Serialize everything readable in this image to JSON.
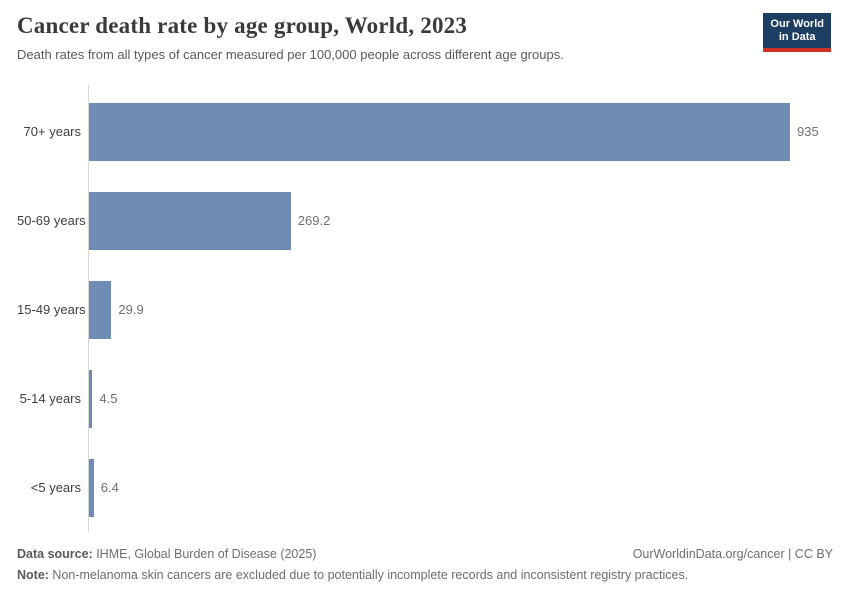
{
  "header": {
    "title": "Cancer death rate by age group, World, 2023",
    "subtitle": "Death rates from all types of cancer measured per 100,000 people across different age groups.",
    "logo": {
      "line1": "Our World",
      "line2": "in Data"
    }
  },
  "chart_data": {
    "type": "bar",
    "orientation": "horizontal",
    "title": "Cancer death rate by age group, World, 2023",
    "categories": [
      "70+ years",
      "50-69 years",
      "15-49 years",
      "5-14 years",
      "<5 years"
    ],
    "values": [
      935,
      269.2,
      29.9,
      4.5,
      6.4
    ],
    "value_labels": [
      "935",
      "269.2",
      "29.9",
      "4.5",
      "6.4"
    ],
    "xlabel": "",
    "ylabel": "",
    "xlim": [
      0,
      935
    ],
    "grid": false,
    "legend": false,
    "bar_color": "#6f8cb4"
  },
  "footer": {
    "datasource_label": "Data source:",
    "datasource_text": " IHME, Global Burden of Disease (2025)",
    "credit": "OurWorldinData.org/cancer | CC BY",
    "note_label": "Note:",
    "note_text": " Non-melanoma skin cancers are excluded due to potentially incomplete records and inconsistent registry practices."
  },
  "colors": {
    "bar": "#6f8cb4",
    "axis_line": "#d7d7d7",
    "logo_navy": "#1d3d63",
    "logo_red": "#cf3127",
    "title_text": "#3a3a3a",
    "muted_text": "#6e6e6e"
  }
}
